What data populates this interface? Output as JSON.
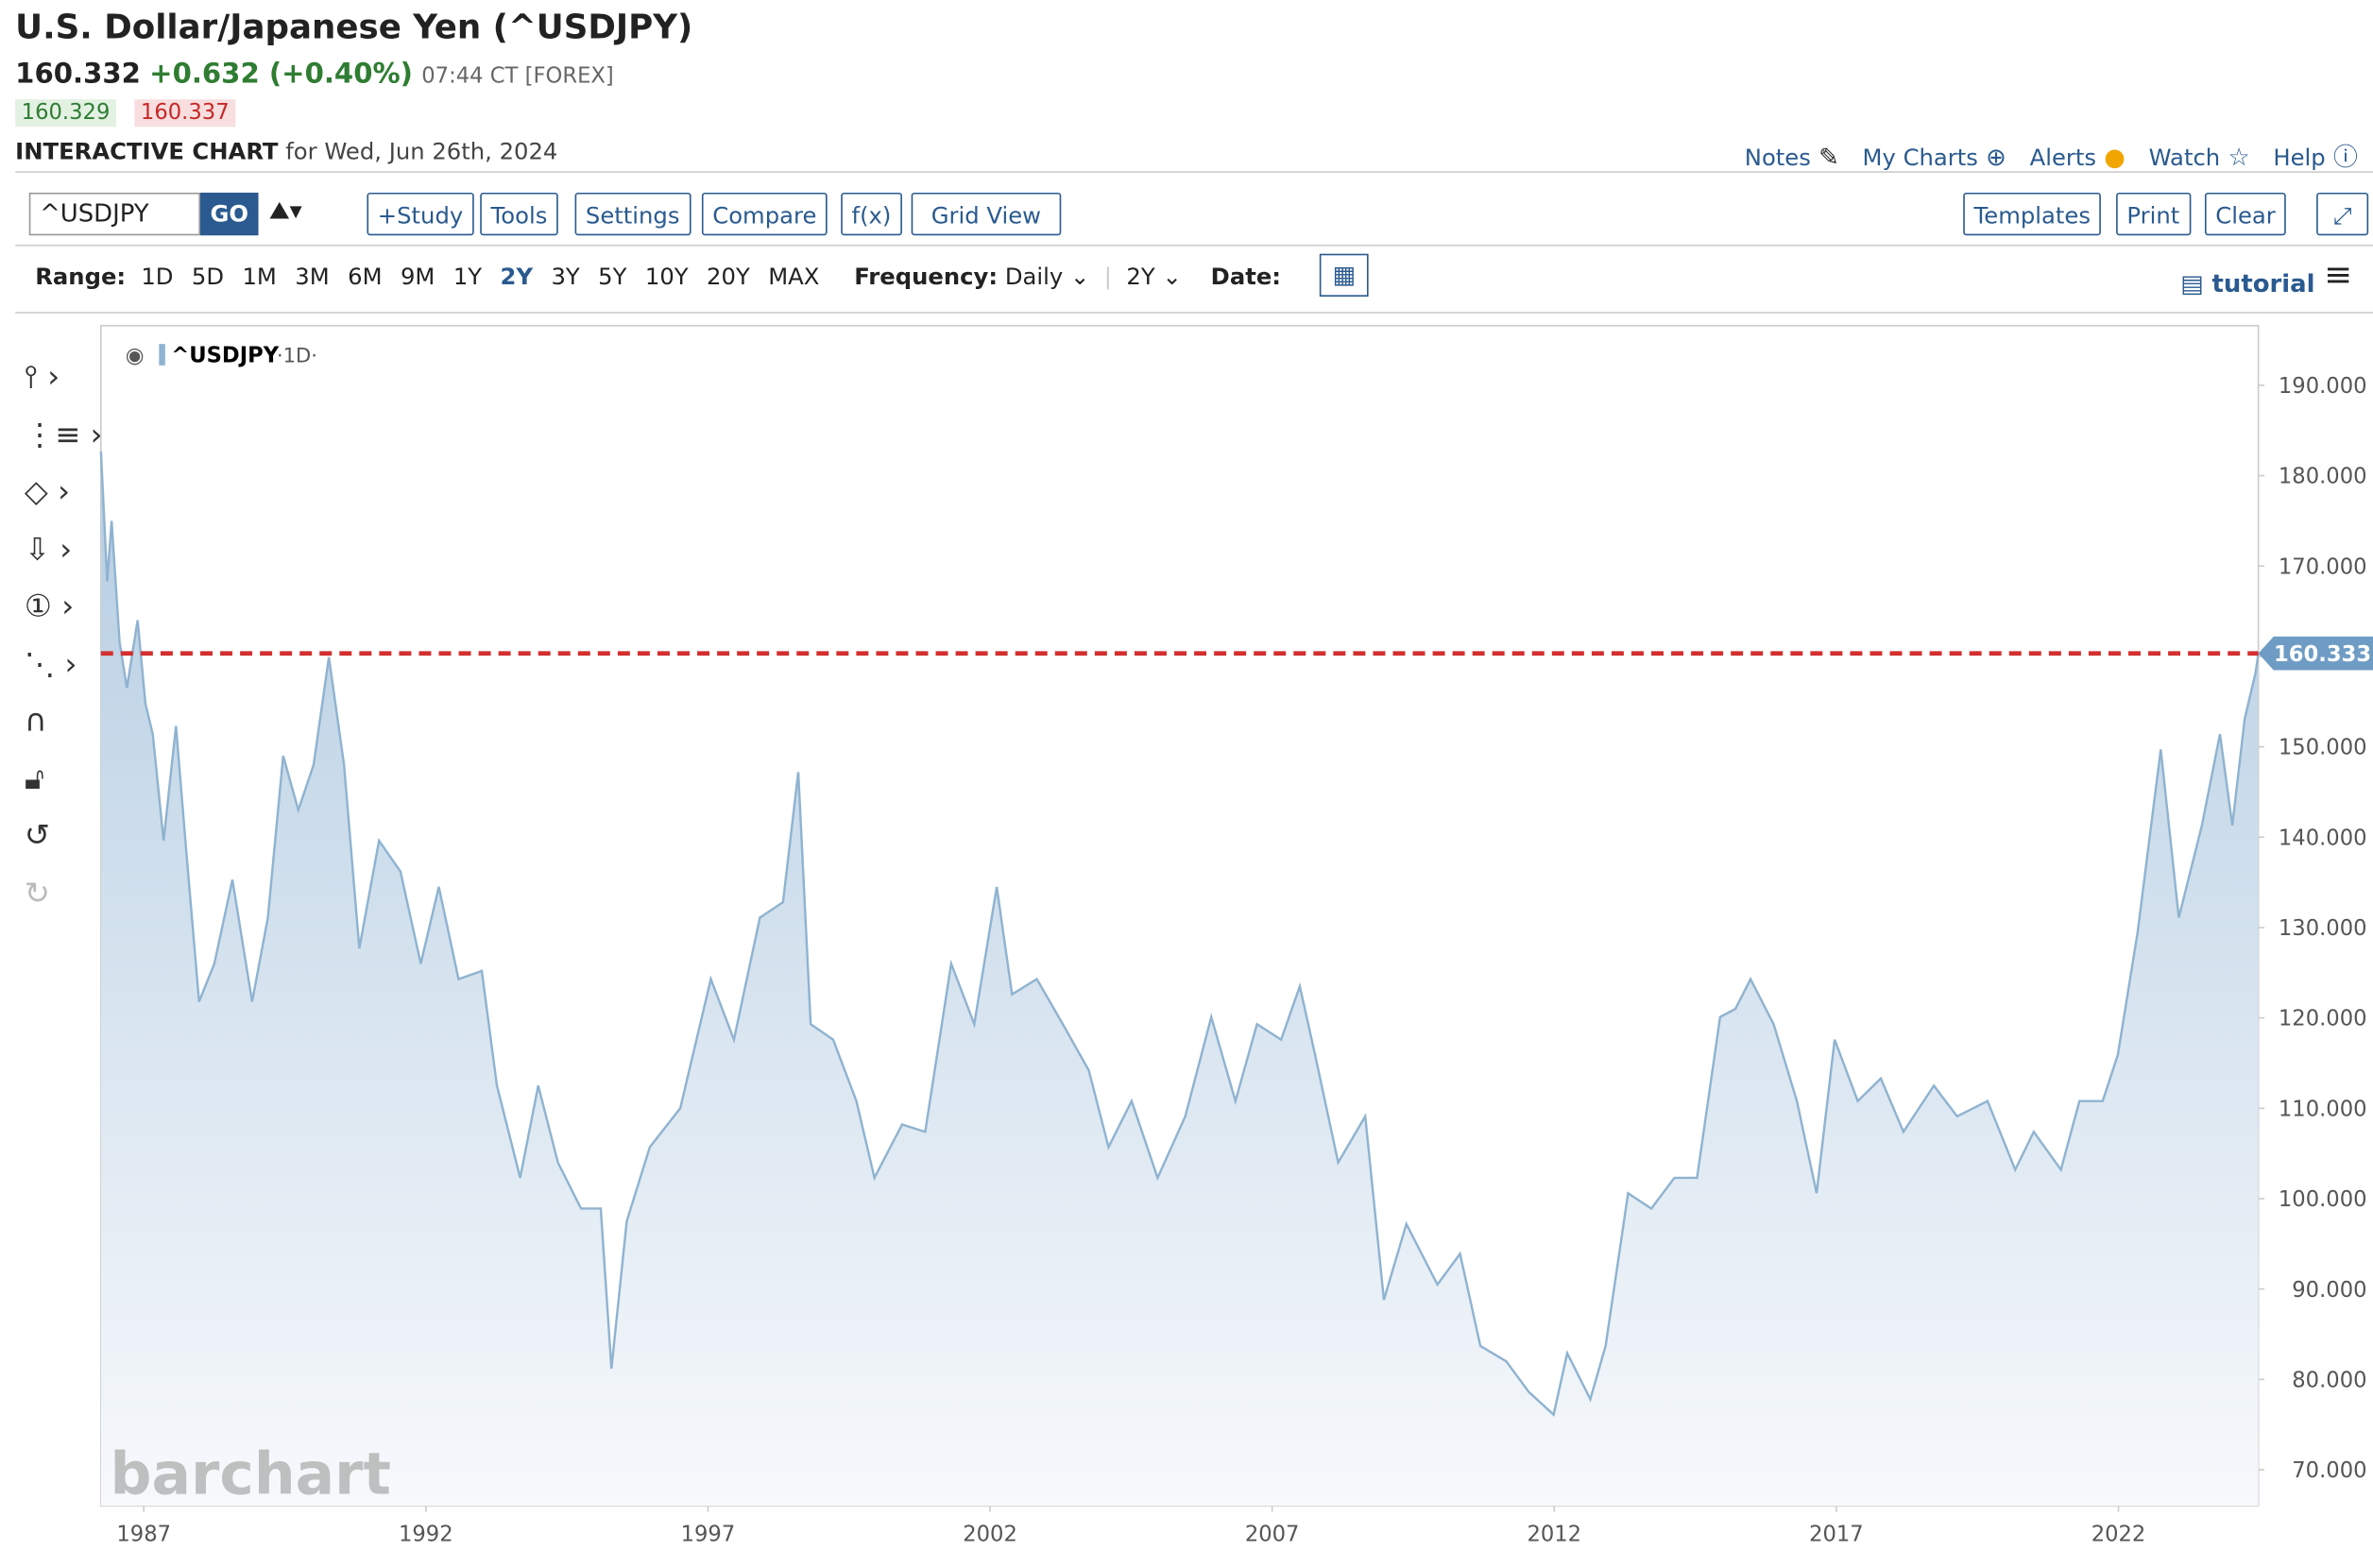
{
  "header": {
    "title": "U.S. Dollar/Japanese Yen (^USDJPY)",
    "price": "160.332",
    "change": "+0.632 (+0.40%)",
    "time": "07:44 CT [FOREX]",
    "bid": "160.329",
    "ask": "160.337",
    "chart_label": "INTERACTIVE CHART",
    "date_text": "for Wed, Jun 26th, 2024",
    "links": [
      "Notes",
      "My Charts",
      "Alerts",
      "Watch",
      "Help"
    ]
  },
  "toolbar": {
    "symbol": "^USDJPY",
    "go": "GO",
    "buttons": [
      "+Study",
      "Tools",
      "Settings",
      "Compare",
      "f(x)",
      "Grid View"
    ],
    "right_buttons": [
      "Templates",
      "Print",
      "Clear"
    ]
  },
  "range_bar": {
    "range_label": "Range:",
    "ranges": [
      "1D",
      "5D",
      "1M",
      "3M",
      "6M",
      "9M",
      "1Y",
      "2Y",
      "3Y",
      "5Y",
      "10Y",
      "20Y",
      "MAX"
    ],
    "frequency_label": "Frequency:",
    "frequency": "Daily",
    "period": "2Y",
    "date_label": "Date:",
    "tutorial": "tutorial"
  },
  "chart_data": {
    "type": "area",
    "legend": "^USDJPY",
    "interval": "·1D·",
    "watermark": "barchart",
    "color": "#8fb3d0",
    "last_price": 160.333,
    "xlim": [
      1986.24,
      2024.48
    ],
    "xticks": [
      1987,
      1992,
      1997,
      2002,
      2007,
      2012,
      2017,
      2022
    ],
    "ylim": [
      66,
      196.6
    ],
    "yticks": [
      {
        "value": 70,
        "label": "70.000"
      },
      {
        "value": 80,
        "label": "80.000"
      },
      {
        "value": 90,
        "label": "90.000"
      },
      {
        "value": 100,
        "label": "100.000"
      },
      {
        "value": 110,
        "label": "110.000"
      },
      {
        "value": 120,
        "label": "120.000"
      },
      {
        "value": 130,
        "label": "130.000"
      },
      {
        "value": 140,
        "label": "140.000"
      },
      {
        "value": 150,
        "label": "150.000"
      },
      {
        "value": 160,
        "label": "160.000"
      },
      {
        "value": 170,
        "label": "170.000"
      },
      {
        "value": 180,
        "label": "180.000"
      },
      {
        "value": 190,
        "label": "190.000"
      }
    ],
    "x": [
      1986.24,
      1986.35,
      1986.43,
      1986.57,
      1986.7,
      1986.89,
      1987.03,
      1987.16,
      1987.35,
      1987.57,
      1987.76,
      1987.98,
      1988.25,
      1988.57,
      1988.92,
      1989.2,
      1989.47,
      1989.74,
      1990.01,
      1990.28,
      1990.55,
      1990.82,
      1991.17,
      1991.55,
      1991.91,
      1992.23,
      1992.58,
      1992.99,
      1993.26,
      1993.67,
      1993.99,
      1994.34,
      1994.75,
      1995.1,
      1995.29,
      1995.56,
      1995.97,
      1996.51,
      1997.05,
      1997.46,
      1997.92,
      1998.33,
      1998.6,
      1998.82,
      1999.22,
      1999.63,
      1999.95,
      2000.44,
      2000.85,
      2001.31,
      2001.72,
      2002.12,
      2002.39,
      2002.83,
      2003.29,
      2003.75,
      2004.1,
      2004.51,
      2004.97,
      2005.46,
      2005.92,
      2006.35,
      2006.73,
      2007.16,
      2007.49,
      2007.76,
      2008.17,
      2008.65,
      2008.98,
      2009.38,
      2009.93,
      2010.33,
      2010.69,
      2011.15,
      2011.55,
      2011.99,
      2012.23,
      2012.64,
      2012.91,
      2013.31,
      2013.72,
      2014.13,
      2014.53,
      2014.94,
      2015.21,
      2015.48,
      2015.89,
      2016.3,
      2016.65,
      2016.97,
      2017.38,
      2017.79,
      2018.19,
      2018.73,
      2019.14,
      2019.68,
      2020.17,
      2020.5,
      2020.98,
      2021.31,
      2021.72,
      2021.99,
      2022.34,
      2022.75,
      2023.07,
      2023.48,
      2023.8,
      2024.02,
      2024.24,
      2024.43,
      2024.48
    ],
    "values": [
      182.7,
      168.3,
      175,
      161.6,
      156.5,
      164,
      154.8,
      151.4,
      139.6,
      152.3,
      137.9,
      121.8,
      126,
      135.3,
      121.8,
      131.1,
      149,
      143,
      148,
      159.9,
      148,
      127.7,
      139.6,
      136.2,
      126,
      134.5,
      124.3,
      125.2,
      112.5,
      102.3,
      112.5,
      104,
      98.9,
      98.9,
      81.2,
      97.5,
      105.7,
      110,
      124.3,
      117.6,
      131.1,
      132.8,
      147.2,
      119.3,
      117.6,
      110.8,
      102.3,
      108.2,
      107.4,
      126,
      119.3,
      134.5,
      122.6,
      124.3,
      119.3,
      114.2,
      105.7,
      110.8,
      102.3,
      109.1,
      120.1,
      110.8,
      119.3,
      117.6,
      123.5,
      115.9,
      104,
      109.1,
      88.8,
      97.2,
      90.5,
      93.9,
      83.7,
      82,
      78.6,
      76.1,
      82.9,
      77.8,
      83.7,
      100.6,
      98.9,
      102.3,
      102.3,
      120.1,
      121,
      124.3,
      119.3,
      110.8,
      100.6,
      117.6,
      110.8,
      113.3,
      107.4,
      112.5,
      109.1,
      110.8,
      103.2,
      107.4,
      103.2,
      110.8,
      110.8,
      115.9,
      129.4,
      149.7,
      131.1,
      141.3,
      151.4,
      141.3,
      153.1,
      158.2,
      160.333
    ]
  }
}
